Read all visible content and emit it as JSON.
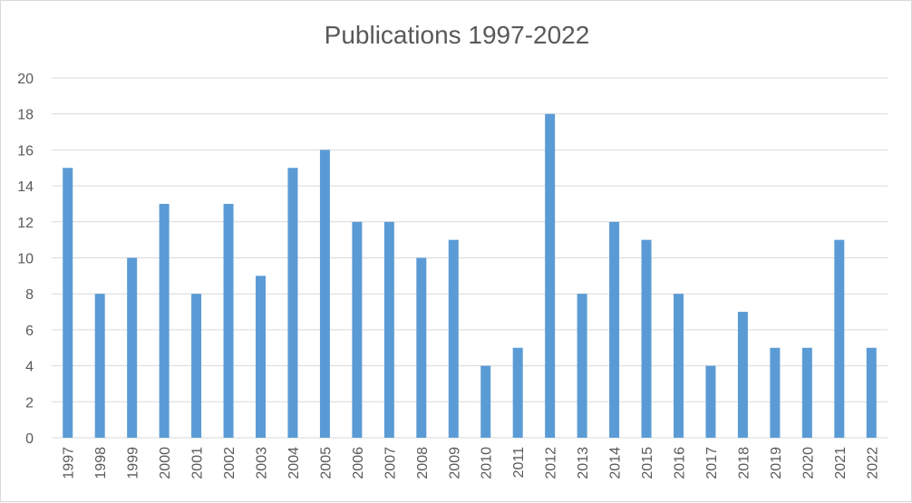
{
  "chart_data": {
    "type": "bar",
    "title": "Publications 1997-2022",
    "xlabel": "",
    "ylabel": "",
    "categories": [
      "1997",
      "1998",
      "1999",
      "2000",
      "2001",
      "2002",
      "2003",
      "2004",
      "2005",
      "2006",
      "2007",
      "2008",
      "2009",
      "2010",
      "2011",
      "2012",
      "2013",
      "2014",
      "2015",
      "2016",
      "2017",
      "2018",
      "2019",
      "2020",
      "2021",
      "2022"
    ],
    "values": [
      15,
      8,
      10,
      13,
      8,
      13,
      9,
      15,
      16,
      12,
      12,
      10,
      11,
      4,
      5,
      18,
      8,
      12,
      11,
      8,
      4,
      7,
      5,
      5,
      11,
      5
    ],
    "ylim": [
      0,
      20
    ],
    "yticks": [
      "0",
      "2",
      "4",
      "6",
      "8",
      "10",
      "12",
      "14",
      "16",
      "18",
      "20"
    ],
    "grid": true,
    "legend": "none",
    "bar_color": "#5b9bd5"
  }
}
